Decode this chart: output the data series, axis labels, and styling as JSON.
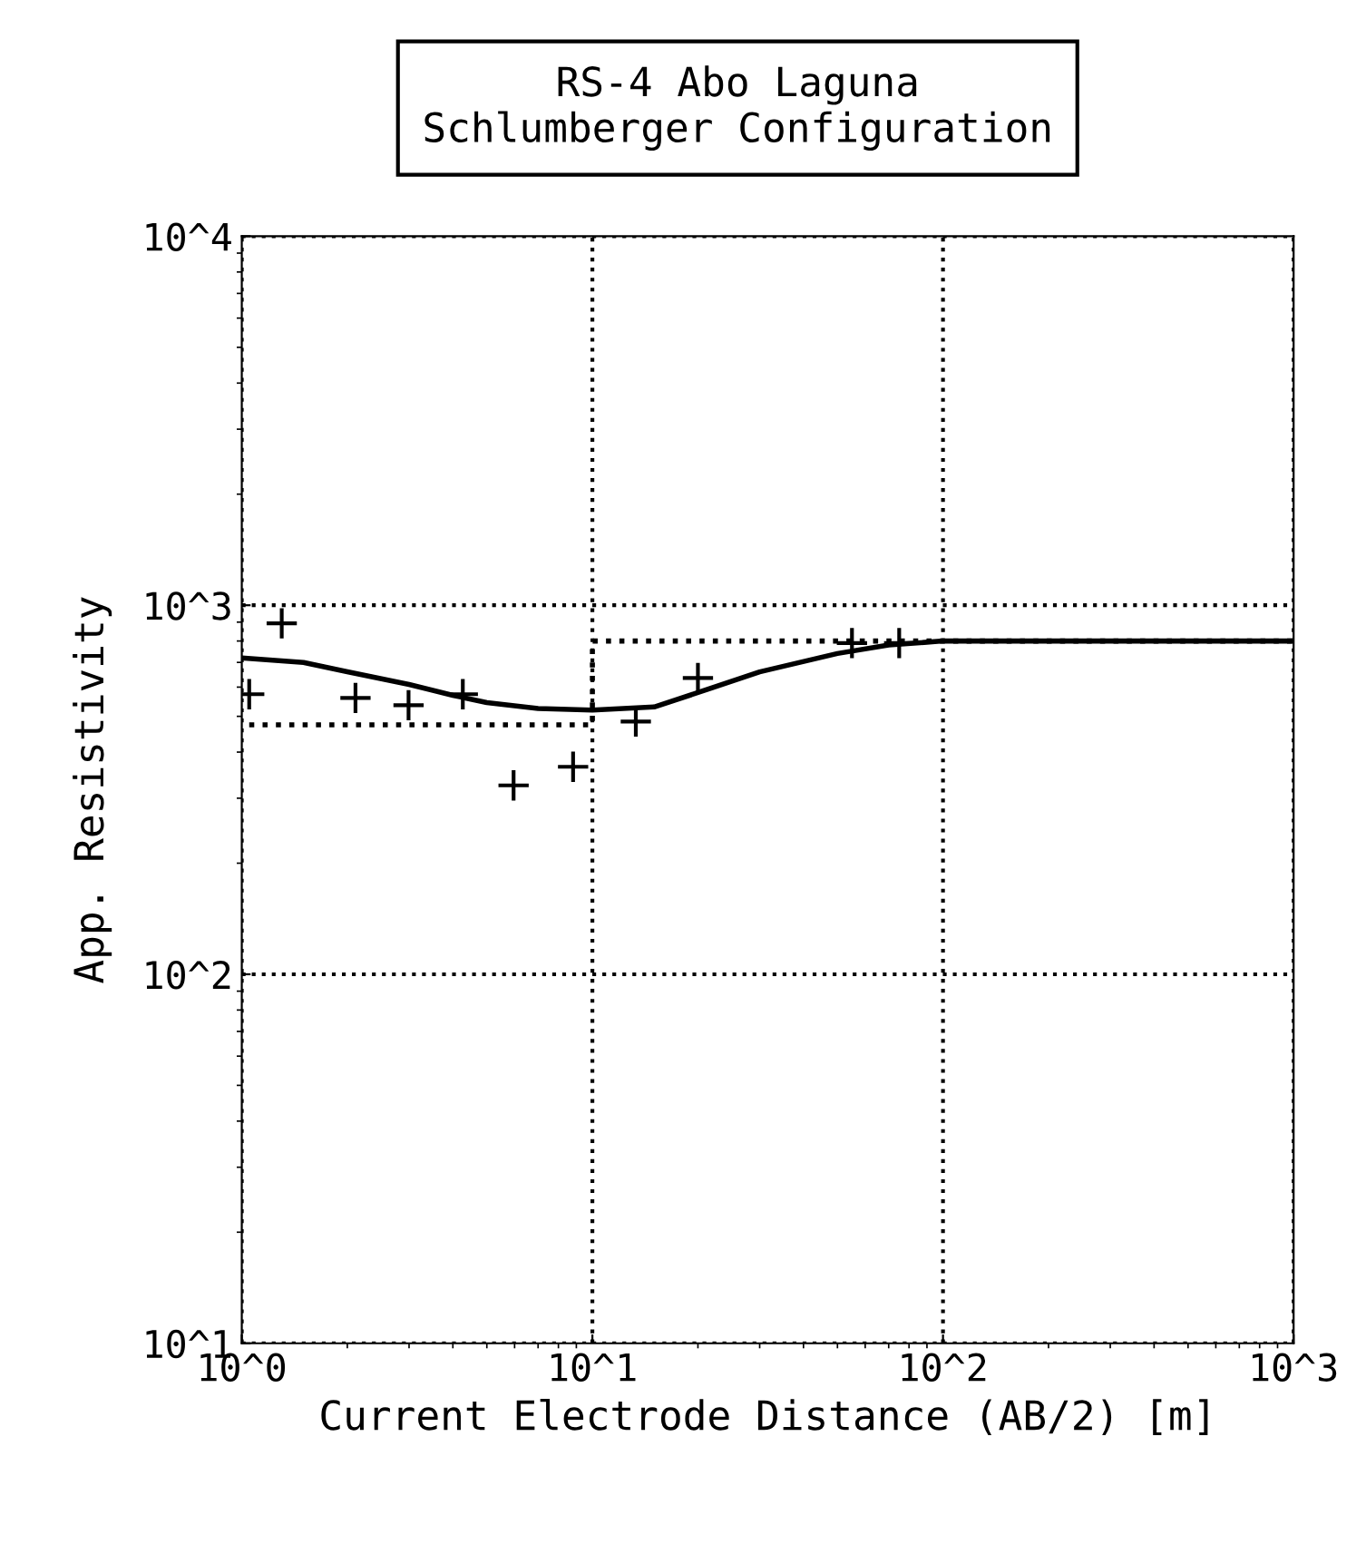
{
  "chart_data": {
    "type": "line",
    "title": "RS-4 Abo Laguna\nSchlumberger Configuration",
    "xlabel": "Current Electrode Distance (AB/2) [m]",
    "ylabel": "App. Resistivity",
    "log": "xy",
    "xlim": [
      1,
      1000
    ],
    "ylim": [
      10,
      10000
    ],
    "xticks": [
      {
        "value": 1,
        "label": "10^0"
      },
      {
        "value": 10,
        "label": "10^1"
      },
      {
        "value": 100,
        "label": "10^2"
      },
      {
        "value": 1000,
        "label": "10^3"
      }
    ],
    "yticks": [
      {
        "value": 10,
        "label": "10^1"
      },
      {
        "value": 100,
        "label": "10^2"
      },
      {
        "value": 1000,
        "label": "10^3"
      },
      {
        "value": 10000,
        "label": "10^4"
      }
    ],
    "grid": true,
    "series": [
      {
        "type": "scatter",
        "color": "#000000",
        "marker": "cross",
        "x": [
          1.05,
          1.3,
          2.11,
          2.99,
          4.27,
          5.96,
          8.81,
          13.3,
          20,
          55,
          75
        ],
        "values": [
          574,
          893,
          561,
          536,
          574,
          325,
          365,
          484,
          635,
          790,
          790
        ]
      },
      {
        "color": "#000000",
        "line_style": "solid",
        "x": [
          1,
          1.5,
          2,
          3,
          4,
          5,
          7,
          10,
          15,
          20,
          30,
          50,
          70,
          100,
          1000
        ],
        "values": [
          720,
          700,
          660,
          610,
          570,
          545,
          525,
          520,
          530,
          580,
          660,
          740,
          780,
          800,
          800
        ]
      },
      {
        "type": "step",
        "color": "#000000",
        "line_style": "dotted",
        "x": [
          1.05,
          10,
          1000
        ],
        "values": [
          474,
          800,
          800
        ]
      }
    ]
  }
}
